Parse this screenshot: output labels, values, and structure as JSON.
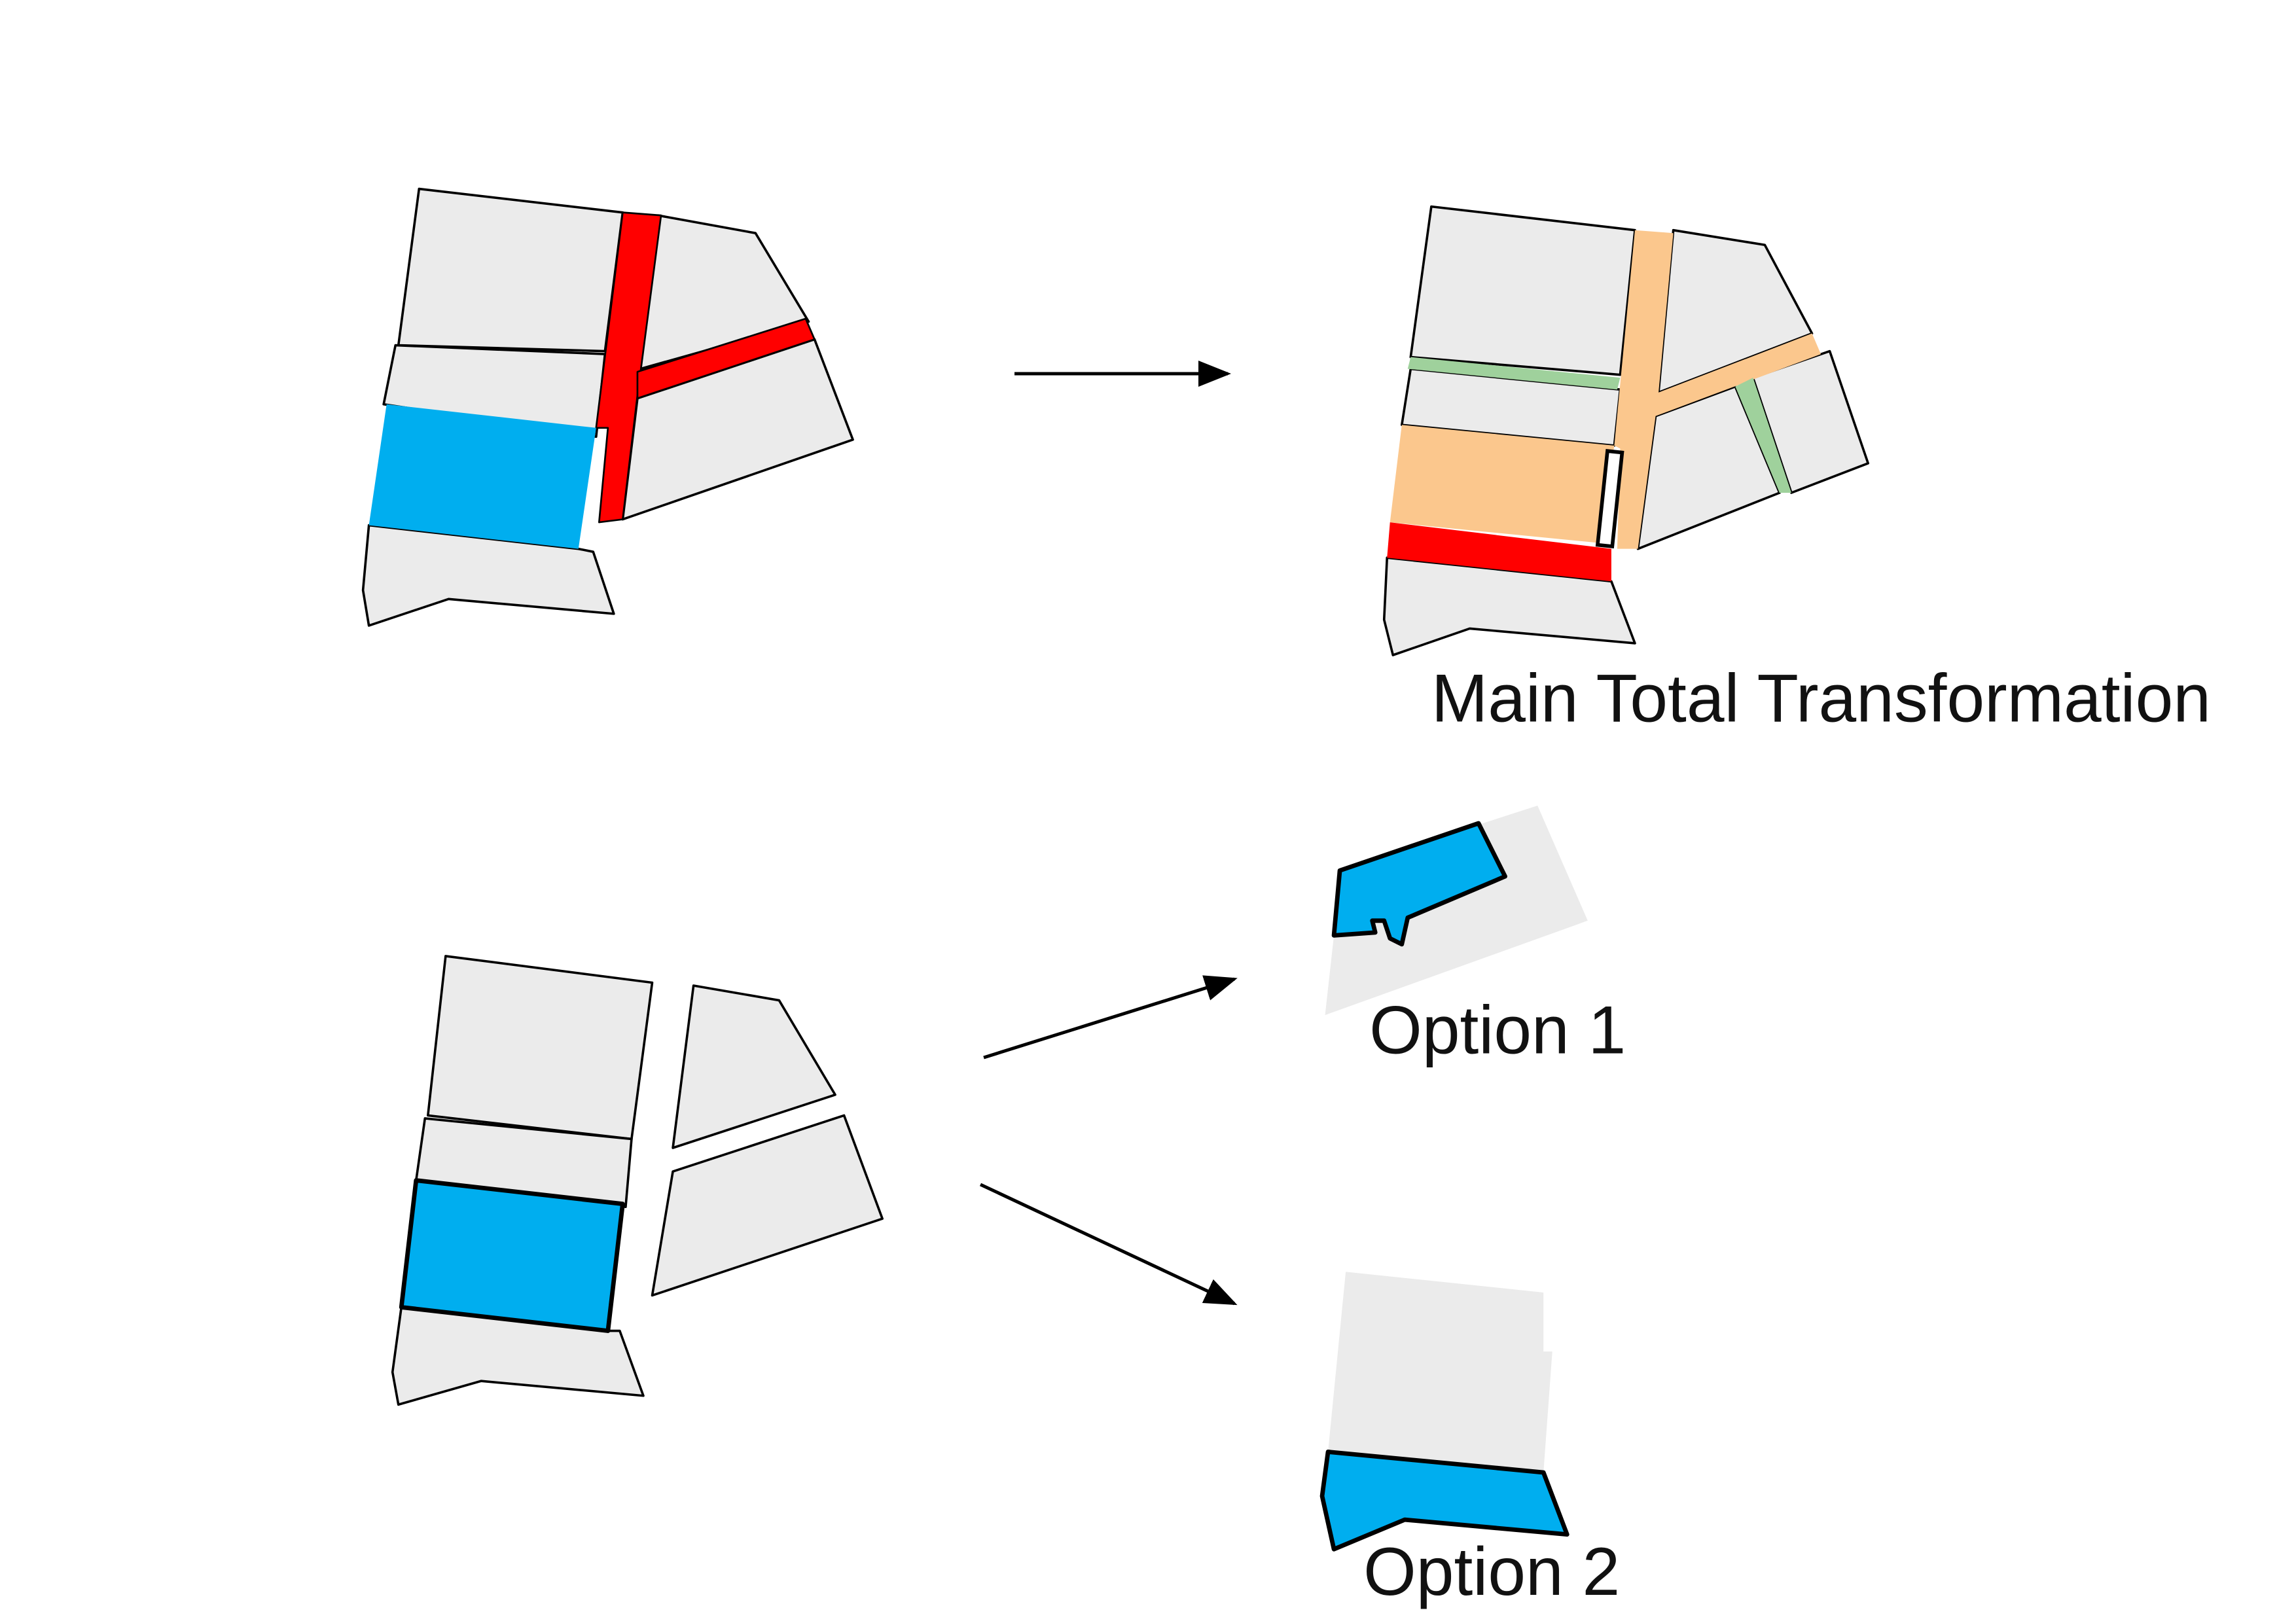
{
  "labels": {
    "main": "Main Total Transformation",
    "option1": "Option 1",
    "option2": "Option 2"
  },
  "colors": {
    "block_fill": "#ebebeb",
    "outline": "#000000",
    "road_red": "#ff0000",
    "selected_blue": "#00aeef",
    "orange_zone": "#fbc78d",
    "green_path": "#9fd19c",
    "background": "#ffffff"
  },
  "icons": {
    "arrow": "arrow-right-icon"
  }
}
